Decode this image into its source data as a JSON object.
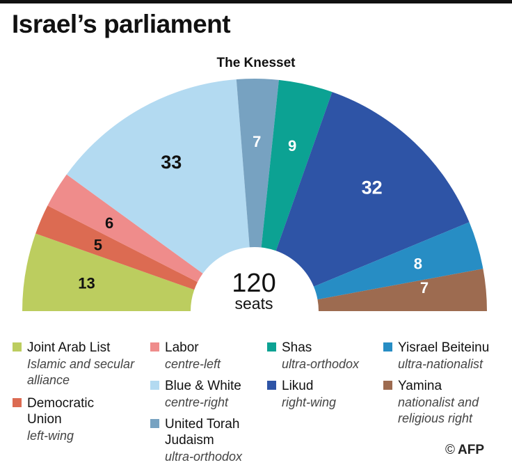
{
  "title": "Israel’s parliament",
  "subtitle": "The Knesset",
  "center_value": "120",
  "center_unit": "seats",
  "credit": "AFP",
  "credit_symbol": "©",
  "chart_data": {
    "type": "pie",
    "shape": "semicircle",
    "total": 120,
    "slices": [
      {
        "label": "Joint Arab List",
        "value": 13,
        "color": "#bccd5f",
        "text_color": "#111111"
      },
      {
        "label": "Democratic Union",
        "value": 5,
        "color": "#dc6b52",
        "text_color": "#111111"
      },
      {
        "label": "Labor",
        "value": 6,
        "color": "#ef8c8b",
        "text_color": "#111111"
      },
      {
        "label": "Blue & White",
        "value": 33,
        "color": "#b3daf1",
        "text_color": "#111111"
      },
      {
        "label": "United Torah Judaism",
        "value": 7,
        "color": "#77a2c1",
        "text_color": "#ffffff"
      },
      {
        "label": "Shas",
        "value": 9,
        "color": "#0ca293",
        "text_color": "#ffffff"
      },
      {
        "label": "Likud",
        "value": 32,
        "color": "#2e54a6",
        "text_color": "#ffffff"
      },
      {
        "label": "Yisrael Beiteinu",
        "value": 8,
        "color": "#278dc4",
        "text_color": "#ffffff"
      },
      {
        "label": "Yamina",
        "value": 7,
        "color": "#9d6b50",
        "text_color": "#ffffff"
      }
    ]
  },
  "legend": [
    {
      "name": "Joint Arab List",
      "desc": "Islamic and secular alliance",
      "color": "#bccd5f"
    },
    {
      "name": "Democratic Union",
      "desc": "left-wing",
      "color": "#dc6b52"
    },
    {
      "name": "Labor",
      "desc": "centre-left",
      "color": "#ef8c8b"
    },
    {
      "name": "Blue & White",
      "desc": "centre-right",
      "color": "#b3daf1"
    },
    {
      "name": "United Torah Judaism",
      "desc": "ultra-orthodox",
      "color": "#77a2c1"
    },
    {
      "name": "Shas",
      "desc": "ultra-orthodox",
      "color": "#0ca293"
    },
    {
      "name": "Likud",
      "desc": "right-wing",
      "color": "#2e54a6"
    },
    {
      "name": "Yisrael Beiteinu",
      "desc": "ultra-nationalist",
      "color": "#278dc4"
    },
    {
      "name": "Yamina",
      "desc": "nationalist and religious right",
      "color": "#9d6b50"
    }
  ]
}
